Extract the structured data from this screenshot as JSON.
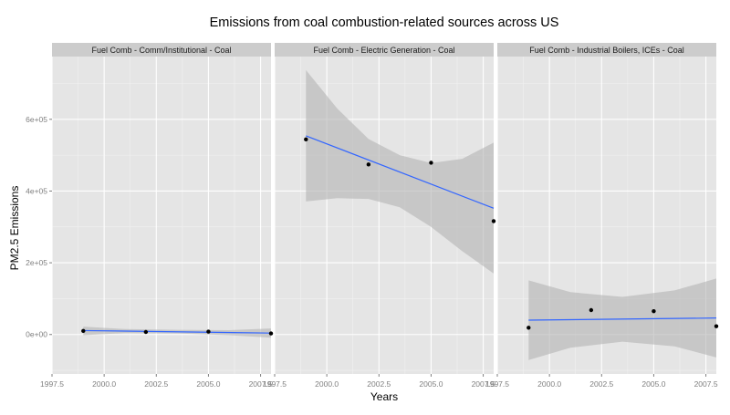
{
  "chart_data": {
    "type": "scatter",
    "title": "Emissions from coal combustion-related sources across US",
    "xlabel": "Years",
    "ylabel": "PM2.5 Emissions",
    "xlim": [
      1997.5,
      2008.0
    ],
    "ylim": [
      -110000,
      775000
    ],
    "x_ticks": [
      1997.5,
      2000.0,
      2002.5,
      2005.0,
      2007.5
    ],
    "x_tick_labels": [
      "1997.5",
      "2000.0",
      "2002.5",
      "2005.0",
      "2007.5"
    ],
    "y_ticks": [
      0,
      200000,
      400000,
      600000
    ],
    "y_tick_labels": [
      "0e+00",
      "2e+05",
      "4e+05",
      "6e+05"
    ],
    "grid": true,
    "legend": "none",
    "colors": {
      "panel_bg": "#e5e5e5",
      "strip_bg": "#cccccc",
      "grid_major": "#ffffff",
      "grid_minor": "#f2f2f2",
      "point": "#000000",
      "fit_line": "#3366ff",
      "ci_band": "#b3b3b3"
    },
    "panels": [
      {
        "strip_label": "Fuel Comb - Comm/Institutional - Coal",
        "points": [
          {
            "x": 1999,
            "y": 10000
          },
          {
            "x": 2002,
            "y": 7000
          },
          {
            "x": 2005,
            "y": 8000
          },
          {
            "x": 2008,
            "y": 3000
          }
        ],
        "fit": {
          "y_start": 11000,
          "y_end": 4000
        },
        "ci": [
          {
            "x": 1999,
            "lo": -2000,
            "hi": 22000
          },
          {
            "x": 2001,
            "lo": 4000,
            "hi": 15000
          },
          {
            "x": 2003.5,
            "lo": 3000,
            "hi": 13000
          },
          {
            "x": 2006,
            "lo": -2000,
            "hi": 12000
          },
          {
            "x": 2008,
            "lo": -9000,
            "hi": 17000
          }
        ]
      },
      {
        "strip_label": "Fuel Comb - Electric Generation - Coal",
        "points": [
          {
            "x": 1999,
            "y": 544000
          },
          {
            "x": 2002,
            "y": 474000
          },
          {
            "x": 2005,
            "y": 479000
          },
          {
            "x": 2008,
            "y": 316000
          }
        ],
        "fit": {
          "y_start": 554000,
          "y_end": 352000
        },
        "ci": [
          {
            "x": 1999,
            "lo": 371000,
            "hi": 737000
          },
          {
            "x": 2000.5,
            "lo": 380000,
            "hi": 630000
          },
          {
            "x": 2002,
            "lo": 378000,
            "hi": 545000
          },
          {
            "x": 2003.5,
            "lo": 355000,
            "hi": 500000
          },
          {
            "x": 2005,
            "lo": 300000,
            "hi": 478000
          },
          {
            "x": 2006.5,
            "lo": 232000,
            "hi": 490000
          },
          {
            "x": 2008,
            "lo": 170000,
            "hi": 535000
          }
        ]
      },
      {
        "strip_label": "Fuel Comb - Industrial Boilers, ICEs - Coal",
        "points": [
          {
            "x": 1999,
            "y": 19000
          },
          {
            "x": 2002,
            "y": 68000
          },
          {
            "x": 2005,
            "y": 65000
          },
          {
            "x": 2008,
            "y": 23000
          }
        ],
        "fit": {
          "y_start": 40000,
          "y_end": 46000
        },
        "ci": [
          {
            "x": 1999,
            "lo": -71000,
            "hi": 151000
          },
          {
            "x": 2001,
            "lo": -37000,
            "hi": 118000
          },
          {
            "x": 2003.5,
            "lo": -20000,
            "hi": 105000
          },
          {
            "x": 2006,
            "lo": -33000,
            "hi": 123000
          },
          {
            "x": 2008,
            "lo": -64000,
            "hi": 156000
          }
        ]
      }
    ]
  }
}
